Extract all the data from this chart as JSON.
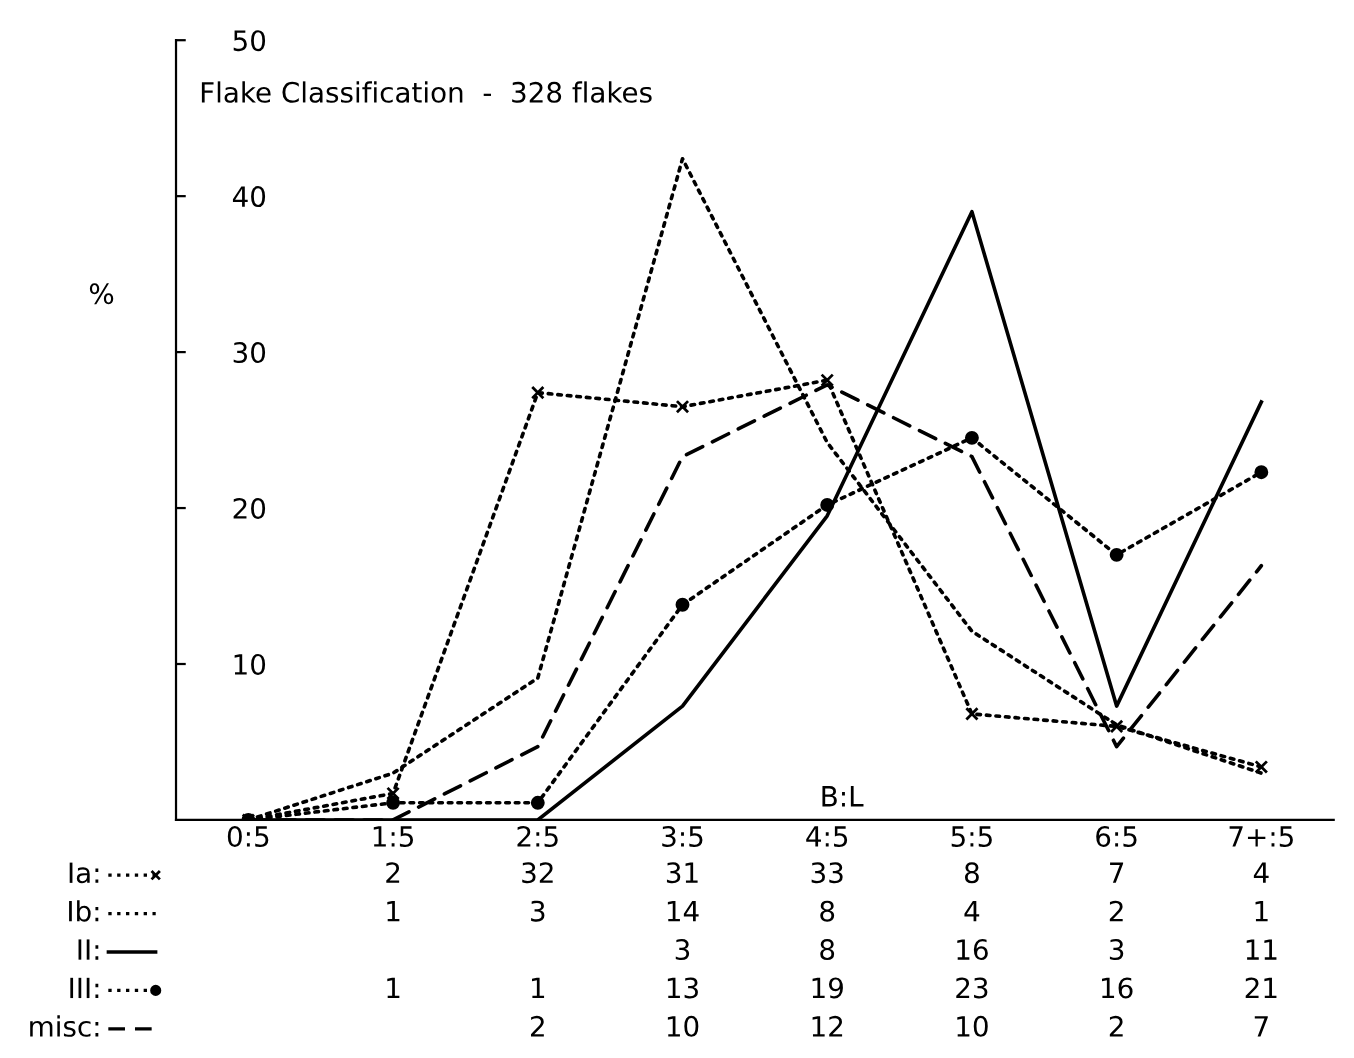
{
  "chart_data": [
    {
      "type": "line",
      "title": "Flake Classification  -  328 flakes",
      "xlabel": "B:L",
      "ylabel": "%",
      "categories": [
        "0:5",
        "1:5",
        "2:5",
        "3:5",
        "4:5",
        "5:5",
        "6:5",
        "7+:5"
      ],
      "ylim": [
        0,
        50
      ],
      "yticks": [
        10,
        20,
        30,
        40,
        50
      ],
      "grid": false,
      "legend": "bottom left",
      "series": [
        {
          "name": "Ia:",
          "color": "#000000",
          "marker": "cross",
          "line_style": "dotted",
          "values": [
            0,
            1.7,
            27.4,
            26.5,
            28.2,
            6.8,
            6.0,
            3.4
          ]
        },
        {
          "name": "Ib:",
          "color": "#000000",
          "marker": "none",
          "line_style": "dotted",
          "values": [
            0,
            3.0,
            9.1,
            42.4,
            24.2,
            12.1,
            6.1,
            3.0
          ]
        },
        {
          "name": "II:",
          "color": "#000000",
          "marker": "none",
          "line_style": "solid",
          "values": [
            0,
            0,
            0,
            7.3,
            19.5,
            39.0,
            7.3,
            26.8
          ]
        },
        {
          "name": "III:",
          "color": "#000000",
          "marker": "circle",
          "line_style": "dotted",
          "values": [
            0,
            1.1,
            1.1,
            13.8,
            20.2,
            24.5,
            17.0,
            22.3
          ]
        },
        {
          "name": "misc:",
          "color": "#000000",
          "marker": "none",
          "line_style": "dashed",
          "values": [
            0,
            0,
            4.7,
            23.3,
            27.9,
            23.3,
            4.7,
            16.3
          ]
        }
      ]
    },
    {
      "type": "heatmap",
      "categories": [
        null,
        null,
        null,
        null,
        null,
        null,
        null,
        null
      ],
      "y_categories": [
        null,
        null,
        null,
        null,
        null
      ],
      "data_labels": true,
      "cells": [
        [
          null,
          2,
          32,
          31,
          33,
          8,
          7,
          4
        ],
        [
          null,
          1,
          3,
          14,
          8,
          4,
          2,
          1
        ],
        [
          null,
          null,
          null,
          3,
          8,
          16,
          3,
          11
        ],
        [
          null,
          1,
          1,
          13,
          19,
          23,
          16,
          21
        ],
        [
          null,
          null,
          2,
          10,
          12,
          10,
          2,
          7
        ]
      ]
    }
  ]
}
